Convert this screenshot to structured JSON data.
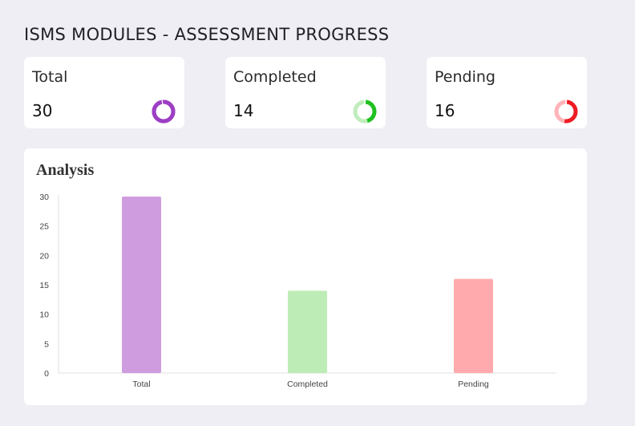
{
  "header": {
    "title": "ISMS MODULES - ASSESSMENT PROGRESS"
  },
  "cards": [
    {
      "label": "Total",
      "value": "30",
      "icon": "donut-total-icon",
      "color": "#9c3fc4",
      "color_light": "#9c3fc4",
      "fraction": 1.0
    },
    {
      "label": "Completed",
      "value": "14",
      "icon": "donut-completed-icon",
      "color": "#20c020",
      "color_light": "#bfedbc",
      "fraction": 0.4667
    },
    {
      "label": "Pending",
      "value": "16",
      "icon": "donut-pending-icon",
      "color": "#ee1c24",
      "color_light": "#ffb3b8",
      "fraction": 0.5333
    }
  ],
  "analysis": {
    "title": "Analysis"
  },
  "chart_data": {
    "type": "bar",
    "title": "Analysis",
    "categories": [
      "Total",
      "Completed",
      "Pending"
    ],
    "values": [
      30,
      14,
      16
    ],
    "colors": [
      "#cf9ddf",
      "#beecb6",
      "#ffaaac"
    ],
    "ylim": [
      0,
      30
    ],
    "yticks": [
      0,
      5,
      10,
      15,
      20,
      25,
      30
    ],
    "xlabel": "",
    "ylabel": "",
    "grid": false,
    "legend": "none"
  }
}
